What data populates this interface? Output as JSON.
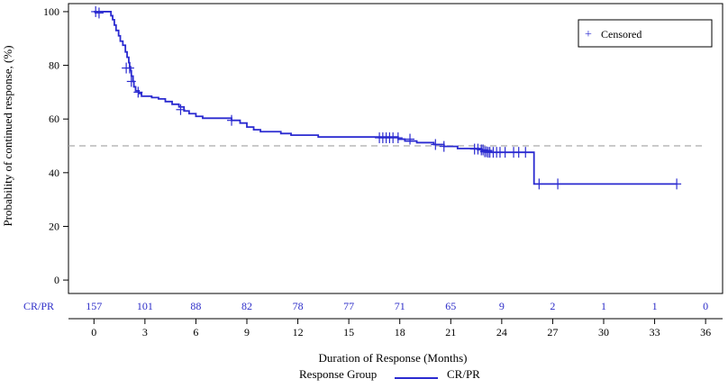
{
  "chart_data": {
    "type": "line",
    "title": "",
    "xlabel": "Duration of Response (Months)",
    "ylabel": "Probability of continued response, (%)",
    "xlim": [
      -1.5,
      37
    ],
    "ylim": [
      -5,
      103
    ],
    "x_ticks": [
      0,
      3,
      6,
      9,
      12,
      15,
      18,
      21,
      24,
      27,
      30,
      33,
      36
    ],
    "y_ticks": [
      0,
      20,
      40,
      60,
      80,
      100
    ],
    "grid": false,
    "reference_line": {
      "y": 50,
      "style": "dashed",
      "color": "#aaaaaa"
    },
    "colors": {
      "series": "#2a2ad0",
      "risk_text": "#2c2cc8",
      "axis": "#000000"
    },
    "series": [
      {
        "name": "CR/PR",
        "step_points": [
          [
            0,
            100
          ],
          [
            0.9,
            100
          ],
          [
            1.0,
            98.5
          ],
          [
            1.1,
            97
          ],
          [
            1.2,
            95
          ],
          [
            1.3,
            93
          ],
          [
            1.45,
            91
          ],
          [
            1.55,
            89
          ],
          [
            1.7,
            87.5
          ],
          [
            1.85,
            85
          ],
          [
            1.95,
            83
          ],
          [
            2.05,
            81
          ],
          [
            2.1,
            79.5
          ],
          [
            2.15,
            78
          ],
          [
            2.2,
            76
          ],
          [
            2.3,
            74
          ],
          [
            2.35,
            72
          ],
          [
            2.45,
            70.5
          ],
          [
            2.65,
            69.5
          ],
          [
            2.8,
            68.5
          ],
          [
            3.4,
            68
          ],
          [
            3.8,
            67.5
          ],
          [
            4.2,
            66.5
          ],
          [
            4.6,
            65.5
          ],
          [
            5.0,
            64.5
          ],
          [
            5.3,
            63
          ],
          [
            5.6,
            62
          ],
          [
            6.0,
            61
          ],
          [
            6.4,
            60.3
          ],
          [
            8.1,
            59.5
          ],
          [
            8.6,
            58.5
          ],
          [
            9.0,
            57
          ],
          [
            9.4,
            56
          ],
          [
            9.8,
            55.3
          ],
          [
            11.0,
            54.6
          ],
          [
            11.6,
            54
          ],
          [
            13.2,
            53.3
          ],
          [
            17.9,
            52.5
          ],
          [
            18.3,
            51.8
          ],
          [
            19.0,
            51.2
          ],
          [
            20.0,
            50.5
          ],
          [
            20.6,
            49.8
          ],
          [
            21.4,
            49
          ],
          [
            22.8,
            48.2
          ],
          [
            23.4,
            47.6
          ],
          [
            25.9,
            35.8
          ],
          [
            34.3,
            35.8
          ]
        ],
        "censored": [
          [
            0.1,
            100
          ],
          [
            0.3,
            99.5
          ],
          [
            1.9,
            79
          ],
          [
            2.1,
            79
          ],
          [
            2.2,
            74
          ],
          [
            2.6,
            70
          ],
          [
            5.1,
            63.5
          ],
          [
            8.1,
            59.5
          ],
          [
            16.8,
            53
          ],
          [
            17.0,
            53
          ],
          [
            17.2,
            53
          ],
          [
            17.4,
            53
          ],
          [
            17.6,
            53
          ],
          [
            17.9,
            53
          ],
          [
            18.6,
            52.5
          ],
          [
            20.1,
            50.5
          ],
          [
            20.6,
            49.8
          ],
          [
            22.4,
            48.8
          ],
          [
            22.6,
            48.8
          ],
          [
            22.8,
            48.5
          ],
          [
            22.9,
            48.5
          ],
          [
            23.0,
            47.8
          ],
          [
            23.1,
            47.8
          ],
          [
            23.2,
            47.6
          ],
          [
            23.3,
            47.6
          ],
          [
            23.5,
            47.6
          ],
          [
            23.7,
            47.6
          ],
          [
            23.9,
            47.6
          ],
          [
            24.2,
            47.6
          ],
          [
            24.7,
            47.6
          ],
          [
            25.0,
            47.6
          ],
          [
            25.4,
            47.6
          ],
          [
            26.2,
            35.8
          ],
          [
            27.3,
            35.8
          ],
          [
            34.3,
            35.8
          ]
        ]
      }
    ],
    "legend": {
      "placement": "top-right",
      "entries": [
        {
          "symbol": "+",
          "label": "Censored"
        }
      ]
    },
    "bottom_legend": {
      "title": "Response Group",
      "entries": [
        {
          "label": "CR/PR"
        }
      ]
    },
    "risk_table": {
      "label": "CR/PR",
      "times": [
        0,
        3,
        6,
        9,
        12,
        15,
        18,
        21,
        24,
        27,
        30,
        33,
        36
      ],
      "counts": [
        157,
        101,
        88,
        82,
        78,
        77,
        71,
        65,
        9,
        2,
        1,
        1,
        0
      ]
    }
  }
}
